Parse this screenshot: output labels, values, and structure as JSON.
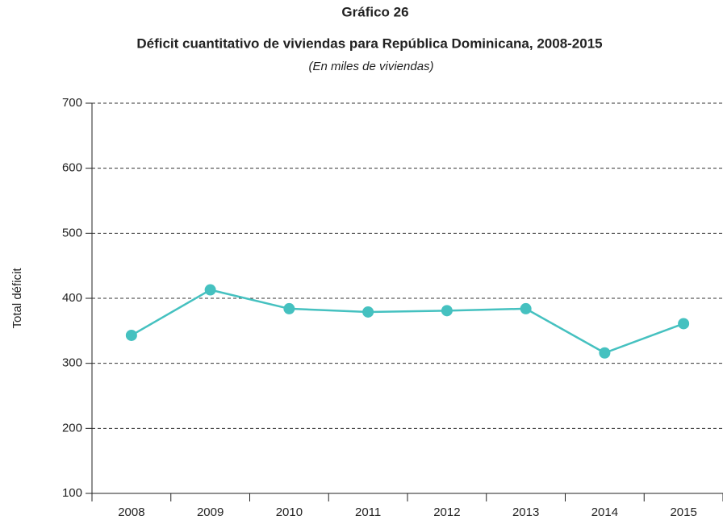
{
  "chart_data": {
    "type": "line",
    "title": "Gráfico 26",
    "subtitle": "Déficit cuantitativo de viviendas para República Dominicana, 2008-2015",
    "note": "(En miles de viviendas)",
    "y_label": "Total déficit",
    "categories": [
      "2008",
      "2009",
      "2010",
      "2011",
      "2012",
      "2013",
      "2014",
      "2015"
    ],
    "series": [
      {
        "name": "Total déficit",
        "color": "#45c1c0",
        "values": [
          343,
          413,
          384,
          379,
          381,
          384,
          316,
          361
        ]
      }
    ],
    "ylim": [
      100,
      700
    ],
    "yticks": [
      100,
      200,
      300,
      400,
      500,
      600,
      700
    ],
    "grid": true
  }
}
